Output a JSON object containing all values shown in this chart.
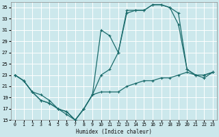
{
  "xlabel": "Humidex (Indice chaleur)",
  "bg_color": "#cce8ec",
  "grid_color": "#ffffff",
  "line_color": "#1a6b6b",
  "xlim": [
    -0.5,
    23.5
  ],
  "ylim": [
    15,
    36
  ],
  "xticks": [
    0,
    1,
    2,
    3,
    4,
    5,
    6,
    7,
    8,
    9,
    10,
    11,
    12,
    13,
    14,
    15,
    16,
    17,
    18,
    19,
    20,
    21,
    22,
    23
  ],
  "yticks": [
    15,
    17,
    19,
    21,
    23,
    25,
    27,
    29,
    31,
    33,
    35
  ],
  "line_spiky_x": [
    0,
    1,
    2,
    3,
    4,
    5,
    6,
    7,
    8,
    9,
    10,
    11,
    12,
    13,
    14,
    15,
    16,
    17,
    18,
    19,
    20,
    21,
    22,
    23
  ],
  "line_spiky_y": [
    23,
    22,
    20,
    18.5,
    18,
    17,
    16.5,
    15,
    17,
    19.5,
    31,
    30,
    27,
    34.5,
    34.5,
    34.5,
    35.5,
    35.5,
    35,
    32,
    24,
    23,
    23,
    23.5
  ],
  "line_smooth_x": [
    0,
    1,
    2,
    3,
    4,
    5,
    6,
    7,
    8,
    9,
    10,
    11,
    12,
    13,
    14,
    15,
    16,
    17,
    18,
    19,
    20,
    21,
    22,
    23
  ],
  "line_smooth_y": [
    23,
    22,
    20,
    18.5,
    18,
    17,
    16.5,
    15,
    17,
    19.5,
    23,
    24,
    27,
    34,
    34.5,
    34.5,
    35.5,
    35.5,
    35,
    34,
    24,
    23,
    23,
    23.5
  ],
  "line_flat_x": [
    0,
    1,
    2,
    3,
    4,
    5,
    6,
    7,
    8,
    9,
    10,
    11,
    12,
    13,
    14,
    15,
    16,
    17,
    18,
    19,
    20,
    21,
    22,
    23
  ],
  "line_flat_y": [
    23,
    22,
    20,
    19.5,
    18.5,
    17,
    16,
    15,
    17,
    19.5,
    20,
    20,
    20,
    21,
    21.5,
    22,
    22,
    22.5,
    22.5,
    23,
    23.5,
    23,
    22.5,
    23.5
  ]
}
